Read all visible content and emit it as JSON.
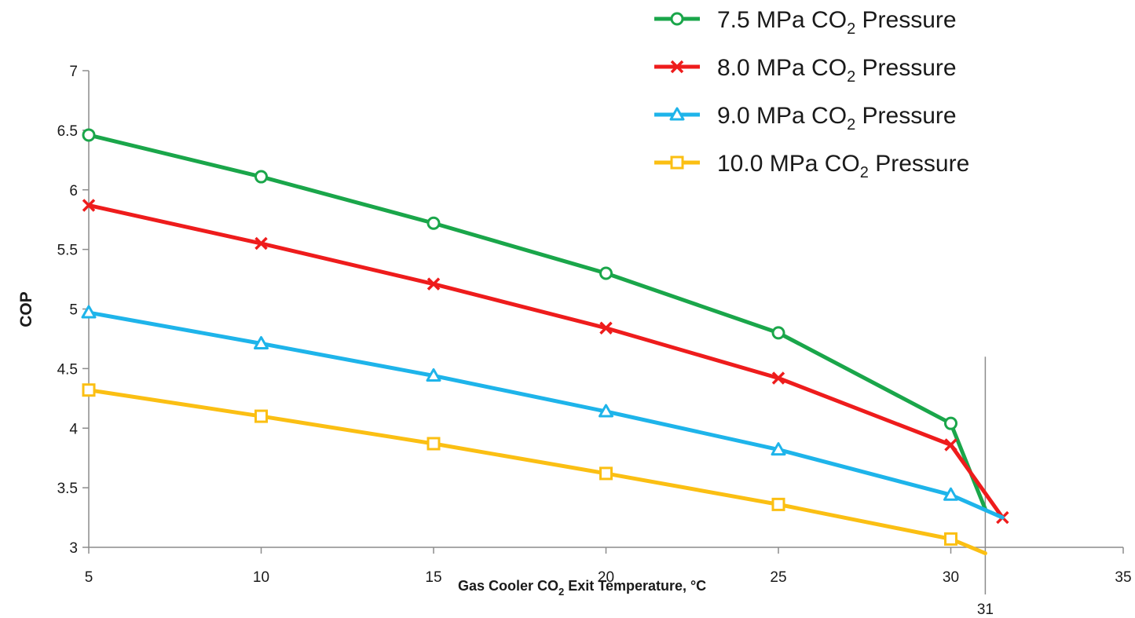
{
  "chart_data": {
    "type": "line",
    "xlabel": {
      "pre": "Gas Cooler CO",
      "sub": "2",
      "post": " Exit Temperature,    °C"
    },
    "ylabel": "COP",
    "xlim": [
      5,
      35
    ],
    "ylim": [
      3,
      7
    ],
    "x_ticks": [
      "5",
      "10",
      "15",
      "20",
      "25",
      "30",
      "35"
    ],
    "y_ticks": [
      "3",
      "3.5",
      "4",
      "4.5",
      "5",
      "5.5",
      "6",
      "6.5",
      "7"
    ],
    "grid": false,
    "legend_position": "top-right",
    "reference_line": {
      "x": 31,
      "label": "31",
      "y_top": 4.6
    },
    "series": [
      {
        "name": "7.5 MPa CO2 Pressure",
        "legend": {
          "pre": "7.5 MPa CO",
          "sub": "2",
          "post": " Pressure"
        },
        "color": "#1aa64a",
        "marker": "circle",
        "x": [
          5,
          10,
          15,
          20,
          25,
          30,
          31
        ],
        "y": [
          6.46,
          6.11,
          5.72,
          5.3,
          4.8,
          4.04,
          3.32
        ],
        "marked": [
          true,
          true,
          true,
          true,
          true,
          true,
          false
        ]
      },
      {
        "name": "8.0 MPa CO2 Pressure",
        "legend": {
          "pre": "8.0 MPa CO",
          "sub": "2",
          "post": " Pressure"
        },
        "color": "#ee1c1c",
        "marker": "x",
        "x": [
          5,
          10,
          15,
          20,
          25,
          30,
          31.5
        ],
        "y": [
          5.87,
          5.55,
          5.21,
          4.84,
          4.42,
          3.86,
          3.25
        ],
        "marked": [
          true,
          true,
          true,
          true,
          true,
          true,
          true
        ]
      },
      {
        "name": "9.0 MPa CO2 Pressure",
        "legend": {
          "pre": "9.0 MPa CO",
          "sub": "2",
          "post": " Pressure"
        },
        "color": "#1eb4ea",
        "marker": "triangle",
        "x": [
          5,
          10,
          15,
          20,
          25,
          30,
          31.5
        ],
        "y": [
          4.97,
          4.71,
          4.44,
          4.14,
          3.82,
          3.44,
          3.25
        ],
        "marked": [
          true,
          true,
          true,
          true,
          true,
          true,
          false
        ]
      },
      {
        "name": "10.0 MPa CO2 Pressure",
        "legend": {
          "pre": "10.0 MPa CO",
          "sub": "2",
          "post": " Pressure"
        },
        "color": "#fbbf13",
        "marker": "square",
        "x": [
          5,
          10,
          15,
          20,
          25,
          30,
          31
        ],
        "y": [
          4.32,
          4.1,
          3.87,
          3.62,
          3.36,
          3.07,
          2.95
        ],
        "marked": [
          true,
          true,
          true,
          true,
          true,
          true,
          false
        ]
      }
    ]
  }
}
